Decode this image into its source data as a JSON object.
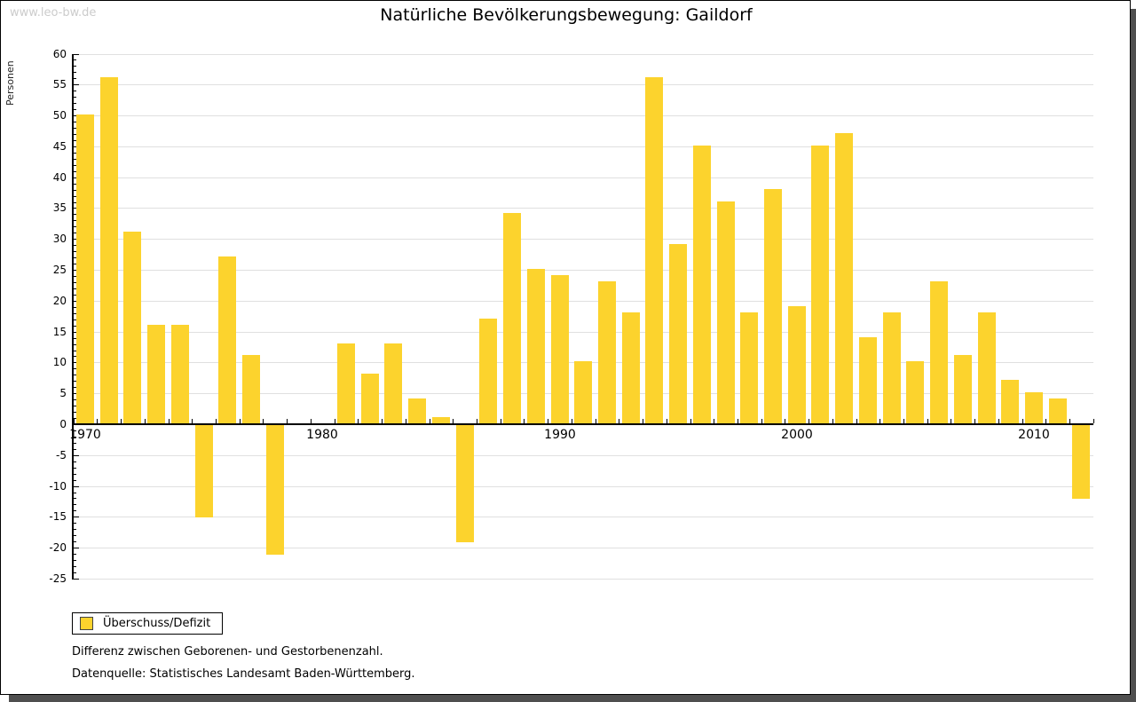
{
  "watermark": "www.leo-bw.de",
  "title": "Natürliche Bevölkerungsbewegung: Gaildorf",
  "legend": {
    "label": "Überschuss/Defizit"
  },
  "notes": [
    "Differenz zwischen Geborenen- und Gestorbenenzahl.",
    "Datenquelle: Statistisches Landesamt Baden-Württemberg."
  ],
  "colors": {
    "bar": "#fcd32d",
    "gridline": "#e0e0e0",
    "axis": "#000000",
    "watermark": "#cccccc"
  },
  "chart_data": {
    "type": "bar",
    "title": "Natürliche Bevölkerungsbewegung: Gaildorf",
    "xlabel": "",
    "ylabel": "Personen",
    "ylim": [
      -25,
      60
    ],
    "ytick_major_step": 5,
    "ytick_minor_step": 1,
    "grid": true,
    "legend_position": "bottom-left",
    "series_name": "Überschuss/Defizit",
    "categories": [
      1970,
      1971,
      1972,
      1973,
      1974,
      1975,
      1976,
      1977,
      1978,
      1979,
      1980,
      1981,
      1982,
      1983,
      1984,
      1985,
      1986,
      1987,
      1988,
      1989,
      1990,
      1991,
      1992,
      1993,
      1994,
      1995,
      1996,
      1997,
      1998,
      1999,
      2000,
      2001,
      2002,
      2003,
      2004,
      2005,
      2006,
      2007,
      2008,
      2009,
      2010,
      2011,
      2012
    ],
    "values": [
      50,
      56,
      31,
      16,
      16,
      -15,
      27,
      11,
      -21,
      0,
      0,
      13,
      8,
      13,
      4,
      1,
      -19,
      17,
      34,
      25,
      24,
      10,
      23,
      18,
      56,
      29,
      45,
      36,
      18,
      38,
      19,
      45,
      47,
      14,
      18,
      10,
      23,
      11,
      18,
      7,
      5,
      4,
      -12
    ],
    "x_tick_labels": [
      1970,
      1980,
      1990,
      2000,
      2010
    ]
  }
}
